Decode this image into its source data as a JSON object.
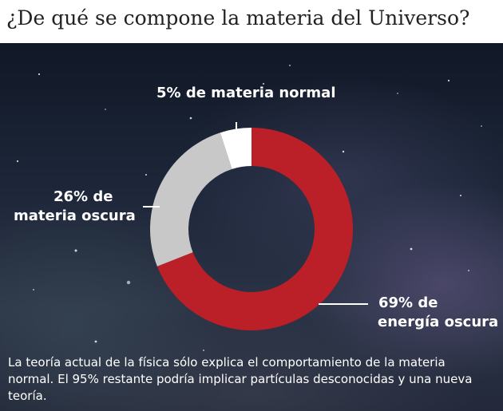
{
  "title": "¿De qué se compone la materia del Universo?",
  "chart_data": {
    "type": "pie",
    "slices": [
      {
        "label": "5% de materia normal",
        "value": 5,
        "color": "#ffffff"
      },
      {
        "label": "26% de materia oscura",
        "value": 26,
        "color": "#c8c8c8"
      },
      {
        "label": "69% de energía oscura",
        "value": 69,
        "color": "#bb1f27"
      }
    ],
    "labels": {
      "normal_matter": "5% de materia normal",
      "dark_matter_line_1": "26% de",
      "dark_matter_line_2": "materia oscura",
      "dark_energy_line_1": "69% de",
      "dark_energy_line_2": "energía oscura"
    },
    "title": "¿De qué se compone la materia del Universo?",
    "legend": "none"
  },
  "footnote": "La teoría actual de la física sólo explica el comportamiento de la materia normal. El 95% restante podría implicar partículas desconocidas y una nueva teoría.",
  "colors": {
    "dark_energy": "#bb1f27",
    "dark_matter": "#c8c8c8",
    "normal_matter": "#ffffff",
    "background": "#1c2638"
  }
}
